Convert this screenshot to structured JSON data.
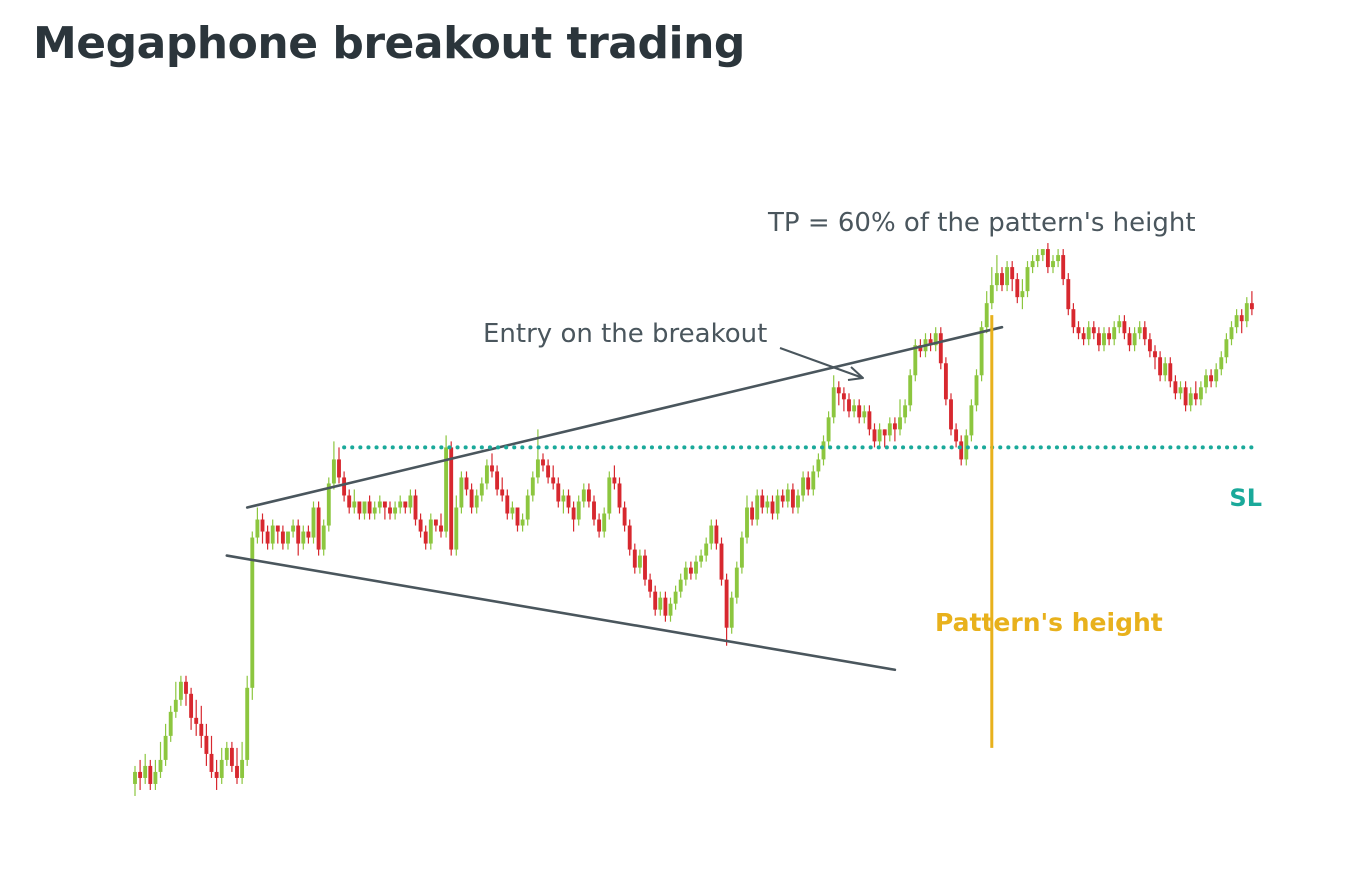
{
  "title": "Megaphone breakout trading",
  "annotations": {
    "tp": "TP = 60% of the pattern's height",
    "entry": "Entry on the breakout",
    "sl": "SL",
    "height": "Pattern's height"
  },
  "colors": {
    "title": "#2b353b",
    "text": "#4a565d",
    "trendline": "#4a565d",
    "bull": "#8cc63f",
    "bear": "#d7282f",
    "sl": "#1aa99a",
    "height": "#e8b11c"
  },
  "chart_data": {
    "type": "candlestick",
    "title": "Megaphone breakout trading",
    "xlabel": "",
    "ylabel": "",
    "axes_visible": false,
    "grid": false,
    "x_range": [
      0,
      220
    ],
    "y_range": [
      0,
      100
    ],
    "candles": [
      [
        0,
        4,
        6,
        2,
        7
      ],
      [
        1,
        6,
        5,
        3,
        8
      ],
      [
        2,
        5,
        7,
        4,
        9
      ],
      [
        3,
        7,
        4,
        3,
        8
      ],
      [
        4,
        4,
        6,
        3,
        8
      ],
      [
        5,
        6,
        8,
        5,
        11
      ],
      [
        6,
        8,
        12,
        7,
        14
      ],
      [
        7,
        12,
        16,
        11,
        17
      ],
      [
        8,
        16,
        18,
        15,
        21
      ],
      [
        9,
        18,
        21,
        17,
        22
      ],
      [
        10,
        21,
        19,
        17,
        22
      ],
      [
        11,
        19,
        15,
        13,
        20
      ],
      [
        12,
        15,
        14,
        12,
        18
      ],
      [
        13,
        14,
        12,
        10,
        17
      ],
      [
        14,
        12,
        9,
        7,
        14
      ],
      [
        15,
        9,
        6,
        5,
        12
      ],
      [
        16,
        6,
        5,
        3,
        8
      ],
      [
        17,
        5,
        8,
        4,
        10
      ],
      [
        18,
        8,
        10,
        7,
        11
      ],
      [
        19,
        10,
        7,
        6,
        11
      ],
      [
        20,
        7,
        5,
        4,
        10
      ],
      [
        21,
        5,
        8,
        4,
        11
      ],
      [
        22,
        8,
        20,
        7,
        22
      ],
      [
        23,
        20,
        45,
        18,
        46
      ],
      [
        24,
        45,
        48,
        44,
        50
      ],
      [
        25,
        48,
        46,
        44,
        49
      ],
      [
        26,
        46,
        44,
        43,
        47
      ],
      [
        27,
        44,
        47,
        43,
        48
      ],
      [
        28,
        47,
        46,
        44,
        47
      ],
      [
        29,
        46,
        44,
        43,
        47
      ],
      [
        30,
        44,
        46,
        43,
        46
      ],
      [
        31,
        46,
        47,
        45,
        48
      ],
      [
        32,
        47,
        44,
        42,
        48
      ],
      [
        33,
        44,
        46,
        43,
        47
      ],
      [
        34,
        46,
        45,
        44,
        47
      ],
      [
        35,
        45,
        50,
        44,
        51
      ],
      [
        36,
        50,
        43,
        42,
        51
      ],
      [
        37,
        43,
        47,
        42,
        48
      ],
      [
        38,
        47,
        54,
        46,
        55
      ],
      [
        39,
        54,
        58,
        53,
        61
      ],
      [
        40,
        58,
        55,
        54,
        60
      ],
      [
        41,
        55,
        52,
        51,
        56
      ],
      [
        42,
        52,
        50,
        49,
        53
      ],
      [
        43,
        50,
        51,
        49,
        53
      ],
      [
        44,
        51,
        49,
        48,
        51
      ],
      [
        45,
        49,
        51,
        48,
        51
      ],
      [
        46,
        51,
        49,
        48,
        52
      ],
      [
        47,
        49,
        50,
        48,
        51
      ],
      [
        48,
        50,
        51,
        49,
        52
      ],
      [
        49,
        51,
        50,
        48,
        51
      ],
      [
        50,
        50,
        49,
        48,
        51
      ],
      [
        51,
        49,
        50,
        48,
        51
      ],
      [
        52,
        50,
        51,
        49,
        52
      ],
      [
        53,
        51,
        50,
        49,
        51
      ],
      [
        54,
        50,
        52,
        49,
        53
      ],
      [
        55,
        52,
        48,
        47,
        53
      ],
      [
        56,
        48,
        46,
        45,
        49
      ],
      [
        57,
        46,
        44,
        43,
        47
      ],
      [
        58,
        44,
        48,
        43,
        49
      ],
      [
        59,
        48,
        47,
        46,
        48
      ],
      [
        60,
        47,
        46,
        45,
        49
      ],
      [
        61,
        46,
        60,
        45,
        62
      ],
      [
        62,
        60,
        43,
        42,
        61
      ],
      [
        63,
        43,
        50,
        42,
        52
      ],
      [
        64,
        50,
        55,
        49,
        56
      ],
      [
        65,
        55,
        53,
        52,
        56
      ],
      [
        66,
        53,
        50,
        49,
        54
      ],
      [
        67,
        50,
        52,
        49,
        53
      ],
      [
        68,
        52,
        54,
        51,
        55
      ],
      [
        69,
        54,
        57,
        53,
        58
      ],
      [
        70,
        57,
        56,
        55,
        59
      ],
      [
        71,
        56,
        53,
        52,
        57
      ],
      [
        72,
        53,
        52,
        51,
        55
      ],
      [
        73,
        52,
        49,
        48,
        53
      ],
      [
        74,
        49,
        50,
        48,
        51
      ],
      [
        75,
        50,
        47,
        46,
        50
      ],
      [
        76,
        47,
        48,
        46,
        49
      ],
      [
        77,
        48,
        52,
        47,
        53
      ],
      [
        78,
        52,
        55,
        51,
        56
      ],
      [
        79,
        55,
        58,
        54,
        63
      ],
      [
        80,
        58,
        57,
        56,
        59
      ],
      [
        81,
        57,
        55,
        54,
        58
      ],
      [
        82,
        55,
        54,
        53,
        57
      ],
      [
        83,
        54,
        51,
        50,
        55
      ],
      [
        84,
        51,
        52,
        49,
        53
      ],
      [
        85,
        52,
        50,
        49,
        53
      ],
      [
        86,
        50,
        48,
        46,
        51
      ],
      [
        87,
        48,
        51,
        47,
        52
      ],
      [
        88,
        51,
        53,
        50,
        54
      ],
      [
        89,
        53,
        51,
        50,
        54
      ],
      [
        90,
        51,
        48,
        47,
        52
      ],
      [
        91,
        48,
        46,
        45,
        49
      ],
      [
        92,
        46,
        49,
        45,
        50
      ],
      [
        93,
        49,
        55,
        48,
        56
      ],
      [
        94,
        55,
        54,
        53,
        57
      ],
      [
        95,
        54,
        50,
        49,
        55
      ],
      [
        96,
        50,
        47,
        46,
        51
      ],
      [
        97,
        47,
        43,
        42,
        48
      ],
      [
        98,
        43,
        40,
        39,
        44
      ],
      [
        99,
        40,
        42,
        39,
        43
      ],
      [
        100,
        42,
        38,
        37,
        43
      ],
      [
        101,
        38,
        36,
        35,
        39
      ],
      [
        102,
        36,
        33,
        32,
        37
      ],
      [
        103,
        33,
        35,
        32,
        36
      ],
      [
        104,
        35,
        32,
        31,
        36
      ],
      [
        105,
        32,
        34,
        31,
        35
      ],
      [
        106,
        34,
        36,
        33,
        37
      ],
      [
        107,
        36,
        38,
        35,
        39
      ],
      [
        108,
        38,
        40,
        37,
        41
      ],
      [
        109,
        40,
        39,
        38,
        41
      ],
      [
        110,
        39,
        41,
        38,
        42
      ],
      [
        111,
        41,
        42,
        40,
        43
      ],
      [
        112,
        42,
        44,
        41,
        45
      ],
      [
        113,
        44,
        47,
        43,
        48
      ],
      [
        114,
        47,
        44,
        43,
        48
      ],
      [
        115,
        44,
        38,
        37,
        45
      ],
      [
        116,
        38,
        30,
        27,
        39
      ],
      [
        117,
        30,
        35,
        29,
        36
      ],
      [
        118,
        35,
        40,
        34,
        41
      ],
      [
        119,
        40,
        45,
        39,
        46
      ],
      [
        120,
        45,
        50,
        44,
        52
      ],
      [
        121,
        50,
        48,
        47,
        51
      ],
      [
        122,
        48,
        52,
        47,
        53
      ],
      [
        123,
        52,
        50,
        49,
        53
      ],
      [
        124,
        50,
        51,
        49,
        52
      ],
      [
        125,
        51,
        49,
        48,
        52
      ],
      [
        126,
        49,
        52,
        48,
        53
      ],
      [
        127,
        52,
        51,
        50,
        53
      ],
      [
        128,
        51,
        53,
        50,
        54
      ],
      [
        129,
        53,
        50,
        49,
        54
      ],
      [
        130,
        50,
        52,
        49,
        53
      ],
      [
        131,
        52,
        55,
        51,
        56
      ],
      [
        132,
        55,
        53,
        52,
        56
      ],
      [
        133,
        53,
        56,
        52,
        57
      ],
      [
        134,
        56,
        58,
        55,
        59
      ],
      [
        135,
        58,
        61,
        57,
        62
      ],
      [
        136,
        61,
        65,
        60,
        66
      ],
      [
        137,
        65,
        70,
        64,
        72
      ],
      [
        138,
        70,
        69,
        67,
        71
      ],
      [
        139,
        69,
        68,
        66,
        70
      ],
      [
        140,
        68,
        66,
        65,
        69
      ],
      [
        141,
        66,
        67,
        65,
        68
      ],
      [
        142,
        67,
        65,
        64,
        68
      ],
      [
        143,
        65,
        66,
        64,
        67
      ],
      [
        144,
        66,
        63,
        62,
        67
      ],
      [
        145,
        63,
        61,
        60,
        64
      ],
      [
        146,
        61,
        63,
        60,
        64
      ],
      [
        147,
        63,
        62,
        60,
        63
      ],
      [
        148,
        62,
        64,
        61,
        65
      ],
      [
        149,
        64,
        63,
        61,
        65
      ],
      [
        150,
        63,
        65,
        62,
        68
      ],
      [
        151,
        65,
        67,
        64,
        68
      ],
      [
        152,
        67,
        72,
        66,
        73
      ],
      [
        153,
        72,
        77,
        71,
        78
      ],
      [
        154,
        77,
        76,
        75,
        78
      ],
      [
        155,
        76,
        78,
        75,
        79
      ],
      [
        156,
        78,
        77,
        76,
        79
      ],
      [
        157,
        77,
        79,
        76,
        80
      ],
      [
        158,
        79,
        74,
        73,
        80
      ],
      [
        159,
        74,
        68,
        67,
        75
      ],
      [
        160,
        68,
        63,
        62,
        69
      ],
      [
        161,
        63,
        61,
        60,
        64
      ],
      [
        162,
        61,
        58,
        57,
        62
      ],
      [
        163,
        58,
        62,
        57,
        63
      ],
      [
        164,
        62,
        67,
        61,
        68
      ],
      [
        165,
        67,
        72,
        66,
        73
      ],
      [
        166,
        72,
        80,
        71,
        81
      ],
      [
        167,
        80,
        84,
        79,
        86
      ],
      [
        168,
        84,
        87,
        83,
        90
      ],
      [
        169,
        87,
        89,
        86,
        92
      ],
      [
        170,
        89,
        87,
        86,
        90
      ],
      [
        171,
        87,
        90,
        86,
        91
      ],
      [
        172,
        90,
        88,
        86,
        91
      ],
      [
        173,
        88,
        85,
        84,
        89
      ],
      [
        174,
        85,
        86,
        83,
        88
      ],
      [
        175,
        86,
        90,
        85,
        91
      ],
      [
        176,
        90,
        91,
        89,
        92
      ],
      [
        177,
        91,
        92,
        90,
        93
      ],
      [
        178,
        92,
        93,
        91,
        93
      ],
      [
        179,
        93,
        90,
        89,
        94
      ],
      [
        180,
        90,
        91,
        89,
        92
      ],
      [
        181,
        91,
        92,
        90,
        93
      ],
      [
        182,
        92,
        88,
        87,
        93
      ],
      [
        183,
        88,
        83,
        82,
        89
      ],
      [
        184,
        83,
        80,
        79,
        84
      ],
      [
        185,
        80,
        79,
        78,
        81
      ],
      [
        186,
        79,
        78,
        77,
        80
      ],
      [
        187,
        78,
        80,
        77,
        81
      ],
      [
        188,
        80,
        79,
        78,
        81
      ],
      [
        189,
        79,
        77,
        76,
        80
      ],
      [
        190,
        77,
        79,
        76,
        80
      ],
      [
        191,
        79,
        78,
        77,
        80
      ],
      [
        192,
        78,
        80,
        77,
        81
      ],
      [
        193,
        80,
        81,
        79,
        82
      ],
      [
        194,
        81,
        79,
        78,
        82
      ],
      [
        195,
        79,
        77,
        76,
        80
      ],
      [
        196,
        77,
        79,
        76,
        80
      ],
      [
        197,
        79,
        80,
        78,
        81
      ],
      [
        198,
        80,
        78,
        77,
        81
      ],
      [
        199,
        78,
        76,
        75,
        79
      ],
      [
        200,
        76,
        75,
        73,
        77
      ],
      [
        201,
        75,
        72,
        71,
        76
      ],
      [
        202,
        72,
        74,
        71,
        75
      ],
      [
        203,
        74,
        71,
        70,
        75
      ],
      [
        204,
        71,
        69,
        68,
        72
      ],
      [
        205,
        69,
        70,
        68,
        71
      ],
      [
        206,
        70,
        67,
        66,
        71
      ],
      [
        207,
        67,
        69,
        66,
        70
      ],
      [
        208,
        69,
        68,
        67,
        71
      ],
      [
        209,
        68,
        70,
        67,
        71
      ],
      [
        210,
        70,
        72,
        69,
        73
      ],
      [
        211,
        72,
        71,
        70,
        73
      ],
      [
        212,
        71,
        73,
        70,
        74
      ],
      [
        213,
        73,
        75,
        72,
        76
      ],
      [
        214,
        75,
        78,
        74,
        79
      ],
      [
        215,
        78,
        80,
        77,
        81
      ],
      [
        216,
        80,
        82,
        79,
        83
      ],
      [
        217,
        82,
        81,
        79,
        83
      ],
      [
        218,
        81,
        84,
        80,
        85
      ],
      [
        219,
        84,
        83,
        82,
        86
      ]
    ],
    "upper_trendline": [
      [
        22,
        50
      ],
      [
        170,
        80
      ]
    ],
    "lower_trendline": [
      [
        18,
        42
      ],
      [
        149,
        23
      ]
    ],
    "sl_level": 60,
    "sl_start_x": 41,
    "pattern_height_x": 168,
    "pattern_height_range": [
      10,
      82
    ]
  }
}
